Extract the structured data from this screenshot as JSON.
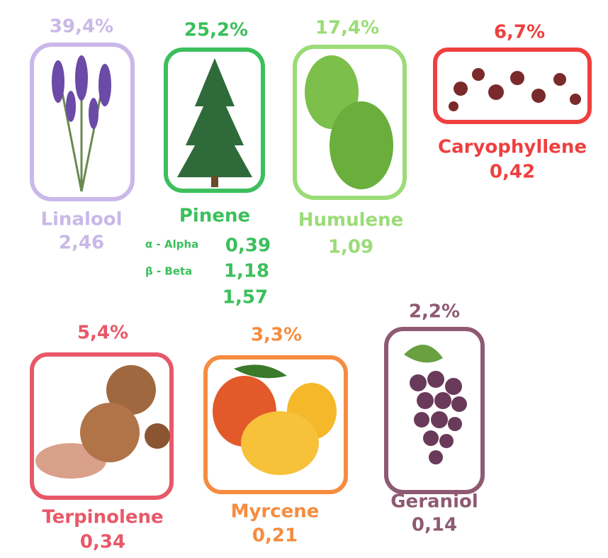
{
  "items": [
    {
      "percent": "39,4%",
      "name": "Linalool",
      "value": "2,46"
    },
    {
      "percent": "25,2%",
      "name": "Pinene",
      "sub": [
        {
          "label": "α - Alpha",
          "value": "0,39"
        },
        {
          "label": "β - Beta",
          "value": "1,18"
        }
      ],
      "value": "1,57"
    },
    {
      "percent": "17,4%",
      "name": "Humulene",
      "value": "1,09"
    },
    {
      "percent": "6,7%",
      "name": "Caryophyllene",
      "value": "0,42"
    },
    {
      "percent": "5,4%",
      "name": "Terpinolene",
      "value": "0,34"
    },
    {
      "percent": "3,3%",
      "name": "Myrcene",
      "value": "0,21"
    },
    {
      "percent": "2,2%",
      "name": "Geraniol",
      "value": "0,14"
    }
  ]
}
